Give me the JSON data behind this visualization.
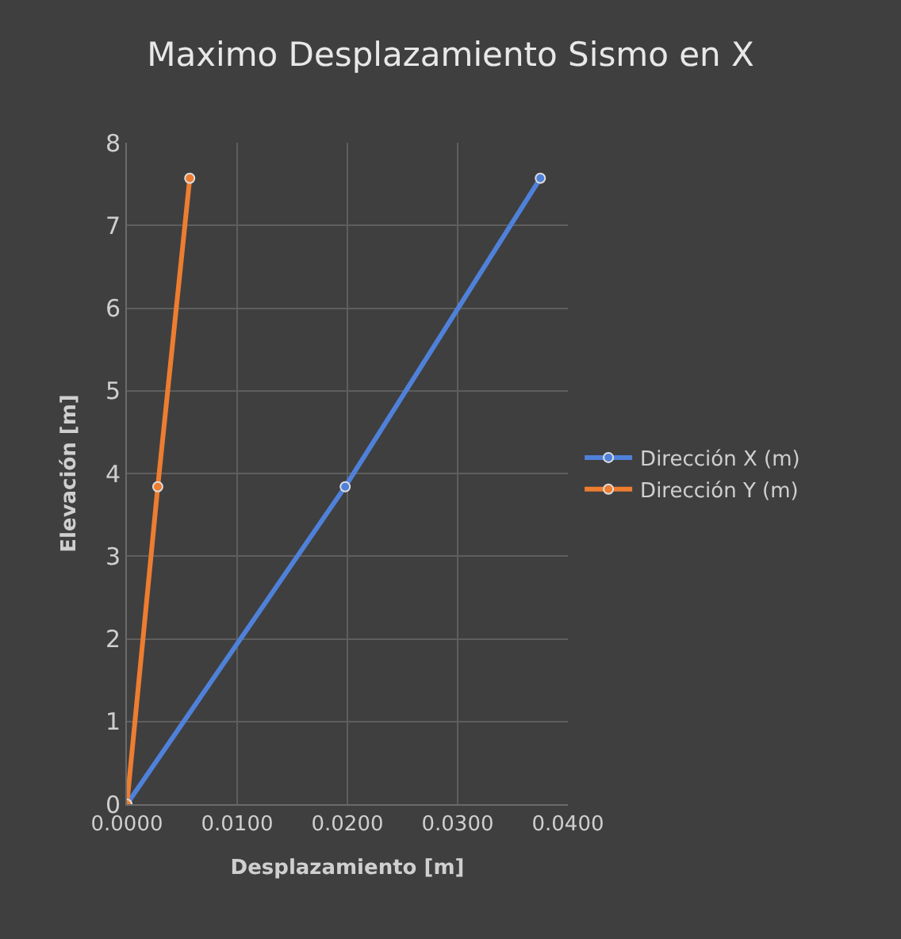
{
  "chart_data": {
    "type": "line",
    "title": "Maximo Desplazamiento Sismo en X",
    "xlabel": "Desplazamiento [m]",
    "ylabel": "Elevación [m]",
    "series": [
      {
        "name": "Dirección X (m)",
        "color": "#4f81d9",
        "x": [
          0,
          0.0198,
          0.0375
        ],
        "values": [
          0,
          3.84,
          7.57
        ]
      },
      {
        "name": "Dirección Y (m)",
        "color": "#ed7d31",
        "x": [
          0,
          0.0028,
          0.0057
        ],
        "values": [
          0,
          3.84,
          7.57
        ]
      }
    ],
    "xlim": [
      0,
      0.04
    ],
    "xticks": [
      {
        "value": 0,
        "label": "0.0000"
      },
      {
        "value": 0.01,
        "label": "0.0100"
      },
      {
        "value": 0.02,
        "label": "0.0200"
      },
      {
        "value": 0.03,
        "label": "0.0300"
      },
      {
        "value": 0.04,
        "label": "0.0400"
      }
    ],
    "ylim": [
      0,
      8
    ],
    "yticks": [
      0,
      1,
      2,
      3,
      4,
      5,
      6,
      7,
      8
    ],
    "grid": true,
    "legend": "right",
    "marker": "circle",
    "line_style": "solid"
  }
}
